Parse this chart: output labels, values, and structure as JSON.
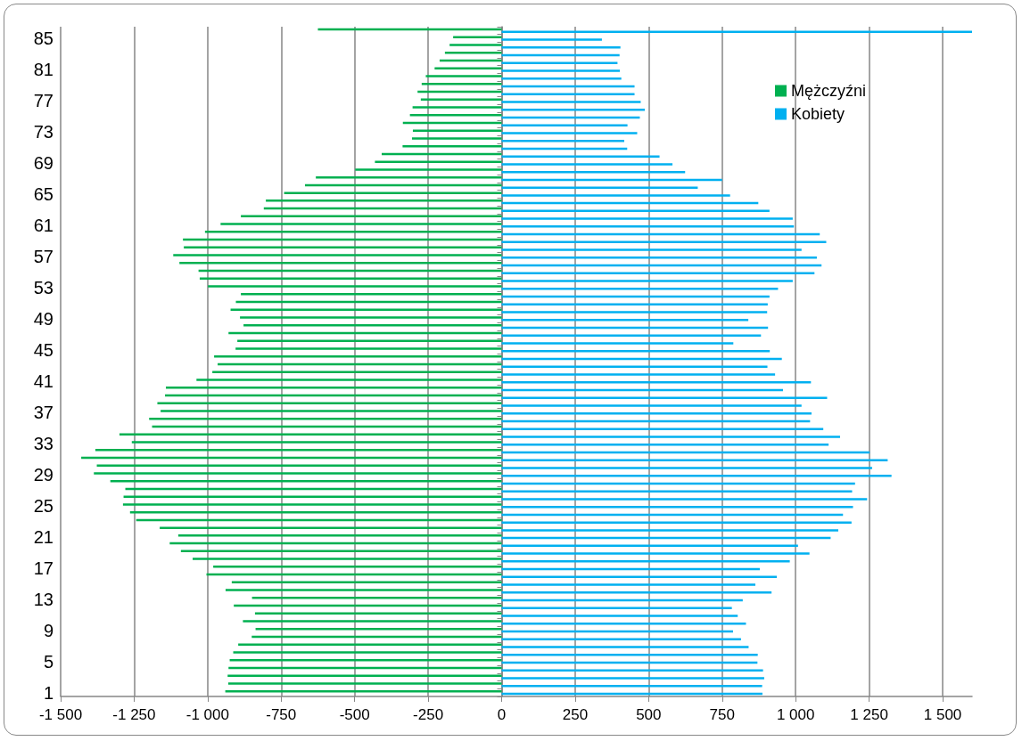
{
  "chart_data": {
    "type": "bar",
    "orientation": "horizontal",
    "categories": [
      null,
      "85",
      null,
      null,
      null,
      "81",
      null,
      null,
      null,
      "77",
      null,
      null,
      null,
      "73",
      null,
      null,
      null,
      "69",
      null,
      null,
      null,
      "65",
      null,
      null,
      null,
      "61",
      null,
      null,
      null,
      "57",
      null,
      null,
      null,
      "53",
      null,
      null,
      null,
      "49",
      null,
      null,
      null,
      "45",
      null,
      null,
      null,
      "41",
      null,
      null,
      null,
      "37",
      null,
      null,
      null,
      "33",
      null,
      null,
      null,
      "29",
      null,
      null,
      null,
      "25",
      null,
      null,
      null,
      "21",
      null,
      null,
      null,
      "17",
      null,
      null,
      null,
      "13",
      null,
      null,
      null,
      "9",
      null,
      null,
      null,
      "5",
      null,
      null,
      null,
      "1"
    ],
    "series": [
      {
        "name": "Mężczyźni",
        "color": "#00b050",
        "values": [
          -625,
          -165,
          -177,
          -193,
          -211,
          -228,
          -258,
          -272,
          -286,
          -275,
          -303,
          -312,
          -336,
          -302,
          -305,
          -337,
          -408,
          -431,
          -498,
          -632,
          -669,
          -740,
          -802,
          -809,
          -887,
          -956,
          -1009,
          -1084,
          -1081,
          -1117,
          -1096,
          -1031,
          -1027,
          -999,
          -887,
          -904,
          -922,
          -890,
          -878,
          -929,
          -899,
          -905,
          -978,
          -966,
          -984,
          -1038,
          -1142,
          -1145,
          -1171,
          -1160,
          -1199,
          -1189,
          -1300,
          -1258,
          -1382,
          -1430,
          -1377,
          -1387,
          -1331,
          -1280,
          -1286,
          -1288,
          -1264,
          -1243,
          -1163,
          -1100,
          -1129,
          -1091,
          -1051,
          -981,
          -1004,
          -918,
          -939,
          -849,
          -911,
          -839,
          -880,
          -837,
          -850,
          -896,
          -913,
          -925,
          -929,
          -932,
          -930,
          -940
        ]
      },
      {
        "name": "Kobiety",
        "color": "#00b0f0",
        "values": [
          1600,
          341,
          404,
          401,
          394,
          402,
          407,
          452,
          452,
          473,
          487,
          470,
          428,
          461,
          417,
          427,
          537,
          581,
          624,
          750,
          667,
          777,
          873,
          911,
          990,
          994,
          1082,
          1104,
          1020,
          1072,
          1088,
          1064,
          990,
          940,
          911,
          905,
          903,
          839,
          906,
          882,
          788,
          912,
          953,
          904,
          930,
          1052,
          957,
          1107,
          1020,
          1054,
          1049,
          1094,
          1151,
          1112,
          1252,
          1313,
          1260,
          1326,
          1202,
          1192,
          1243,
          1195,
          1161,
          1190,
          1145,
          1119,
          1008,
          1047,
          980,
          878,
          936,
          863,
          918,
          820,
          783,
          803,
          831,
          787,
          814,
          840,
          871,
          870,
          889,
          893,
          886,
          887
        ]
      }
    ],
    "xlim": [
      -1500,
      1600
    ],
    "xticks": [
      {
        "value": -1500,
        "label": "-1 500"
      },
      {
        "value": -1250,
        "label": "-1 250"
      },
      {
        "value": -1000,
        "label": "-1 000"
      },
      -750,
      -500,
      -250,
      0,
      250,
      500,
      750,
      {
        "value": 1000,
        "label": "1 000"
      },
      {
        "value": 1250,
        "label": "1 250"
      },
      {
        "value": 1500,
        "label": "1 500"
      }
    ],
    "grid": "x",
    "legend": "top right"
  }
}
